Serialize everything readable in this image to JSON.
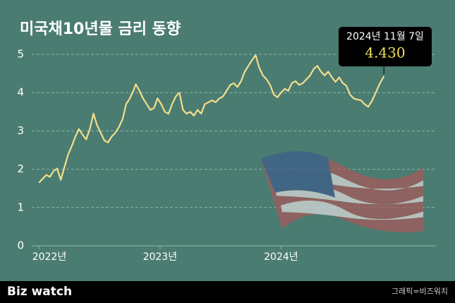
{
  "chart_data": {
    "type": "line",
    "title": "미국채10년물 금리 동향",
    "x": [
      2022.0,
      2022.03,
      2022.06,
      2022.09,
      2022.12,
      2022.15,
      2022.18,
      2022.21,
      2022.24,
      2022.27,
      2022.3,
      2022.33,
      2022.36,
      2022.39,
      2022.42,
      2022.45,
      2022.48,
      2022.51,
      2022.54,
      2022.57,
      2022.6,
      2022.63,
      2022.66,
      2022.69,
      2022.72,
      2022.75,
      2022.78,
      2022.8,
      2022.83,
      2022.86,
      2022.89,
      2022.92,
      2022.95,
      2022.98,
      2023.01,
      2023.04,
      2023.07,
      2023.1,
      2023.13,
      2023.16,
      2023.19,
      2023.22,
      2023.25,
      2023.28,
      2023.31,
      2023.34,
      2023.37,
      2023.4,
      2023.43,
      2023.46,
      2023.49,
      2023.52,
      2023.55,
      2023.58,
      2023.61,
      2023.64,
      2023.67,
      2023.7,
      2023.73,
      2023.76,
      2023.79,
      2023.82,
      2023.85,
      2023.88,
      2023.91,
      2023.94,
      2023.97,
      2024.0,
      2024.03,
      2024.06,
      2024.09,
      2024.12,
      2024.15,
      2024.18,
      2024.21,
      2024.24,
      2024.27,
      2024.3,
      2024.33,
      2024.36,
      2024.39,
      2024.42,
      2024.45,
      2024.48,
      2024.51,
      2024.54,
      2024.57,
      2024.6,
      2024.63,
      2024.66,
      2024.69,
      2024.72,
      2024.75,
      2024.78,
      2024.81,
      2024.85
    ],
    "values": [
      1.65,
      1.75,
      1.85,
      1.8,
      1.95,
      2.02,
      1.72,
      2.05,
      2.38,
      2.6,
      2.85,
      3.05,
      2.9,
      2.78,
      3.05,
      3.45,
      3.15,
      2.95,
      2.75,
      2.7,
      2.85,
      2.95,
      3.1,
      3.3,
      3.7,
      3.85,
      4.05,
      4.22,
      4.05,
      3.85,
      3.7,
      3.55,
      3.6,
      3.85,
      3.7,
      3.5,
      3.45,
      3.7,
      3.9,
      4.0,
      3.55,
      3.45,
      3.5,
      3.4,
      3.55,
      3.45,
      3.7,
      3.75,
      3.8,
      3.75,
      3.85,
      3.9,
      4.05,
      4.2,
      4.25,
      4.15,
      4.3,
      4.55,
      4.7,
      4.85,
      4.98,
      4.65,
      4.45,
      4.35,
      4.2,
      3.95,
      3.88,
      4.0,
      4.1,
      4.05,
      4.25,
      4.3,
      4.2,
      4.25,
      4.35,
      4.45,
      4.62,
      4.7,
      4.55,
      4.45,
      4.55,
      4.4,
      4.28,
      4.4,
      4.25,
      4.18,
      3.95,
      3.85,
      3.82,
      3.8,
      3.7,
      3.63,
      3.78,
      3.98,
      4.2,
      4.43
    ],
    "color": "#f3df8a",
    "xlim": [
      2021.94,
      2025.28
    ],
    "xticks": [
      {
        "value": 2022,
        "label": "2022년"
      },
      {
        "value": 2023,
        "label": "2023년"
      },
      {
        "value": 2024,
        "label": "2024년"
      }
    ],
    "ylim": [
      0,
      5
    ],
    "yticks": [
      0,
      1,
      2,
      3,
      4,
      5
    ],
    "grid": true,
    "annotation": {
      "date": "2024년 11월 7일",
      "text": "4.430"
    }
  },
  "footer": {
    "logo": "Biz watch",
    "credit": "그래픽=비즈워치"
  }
}
